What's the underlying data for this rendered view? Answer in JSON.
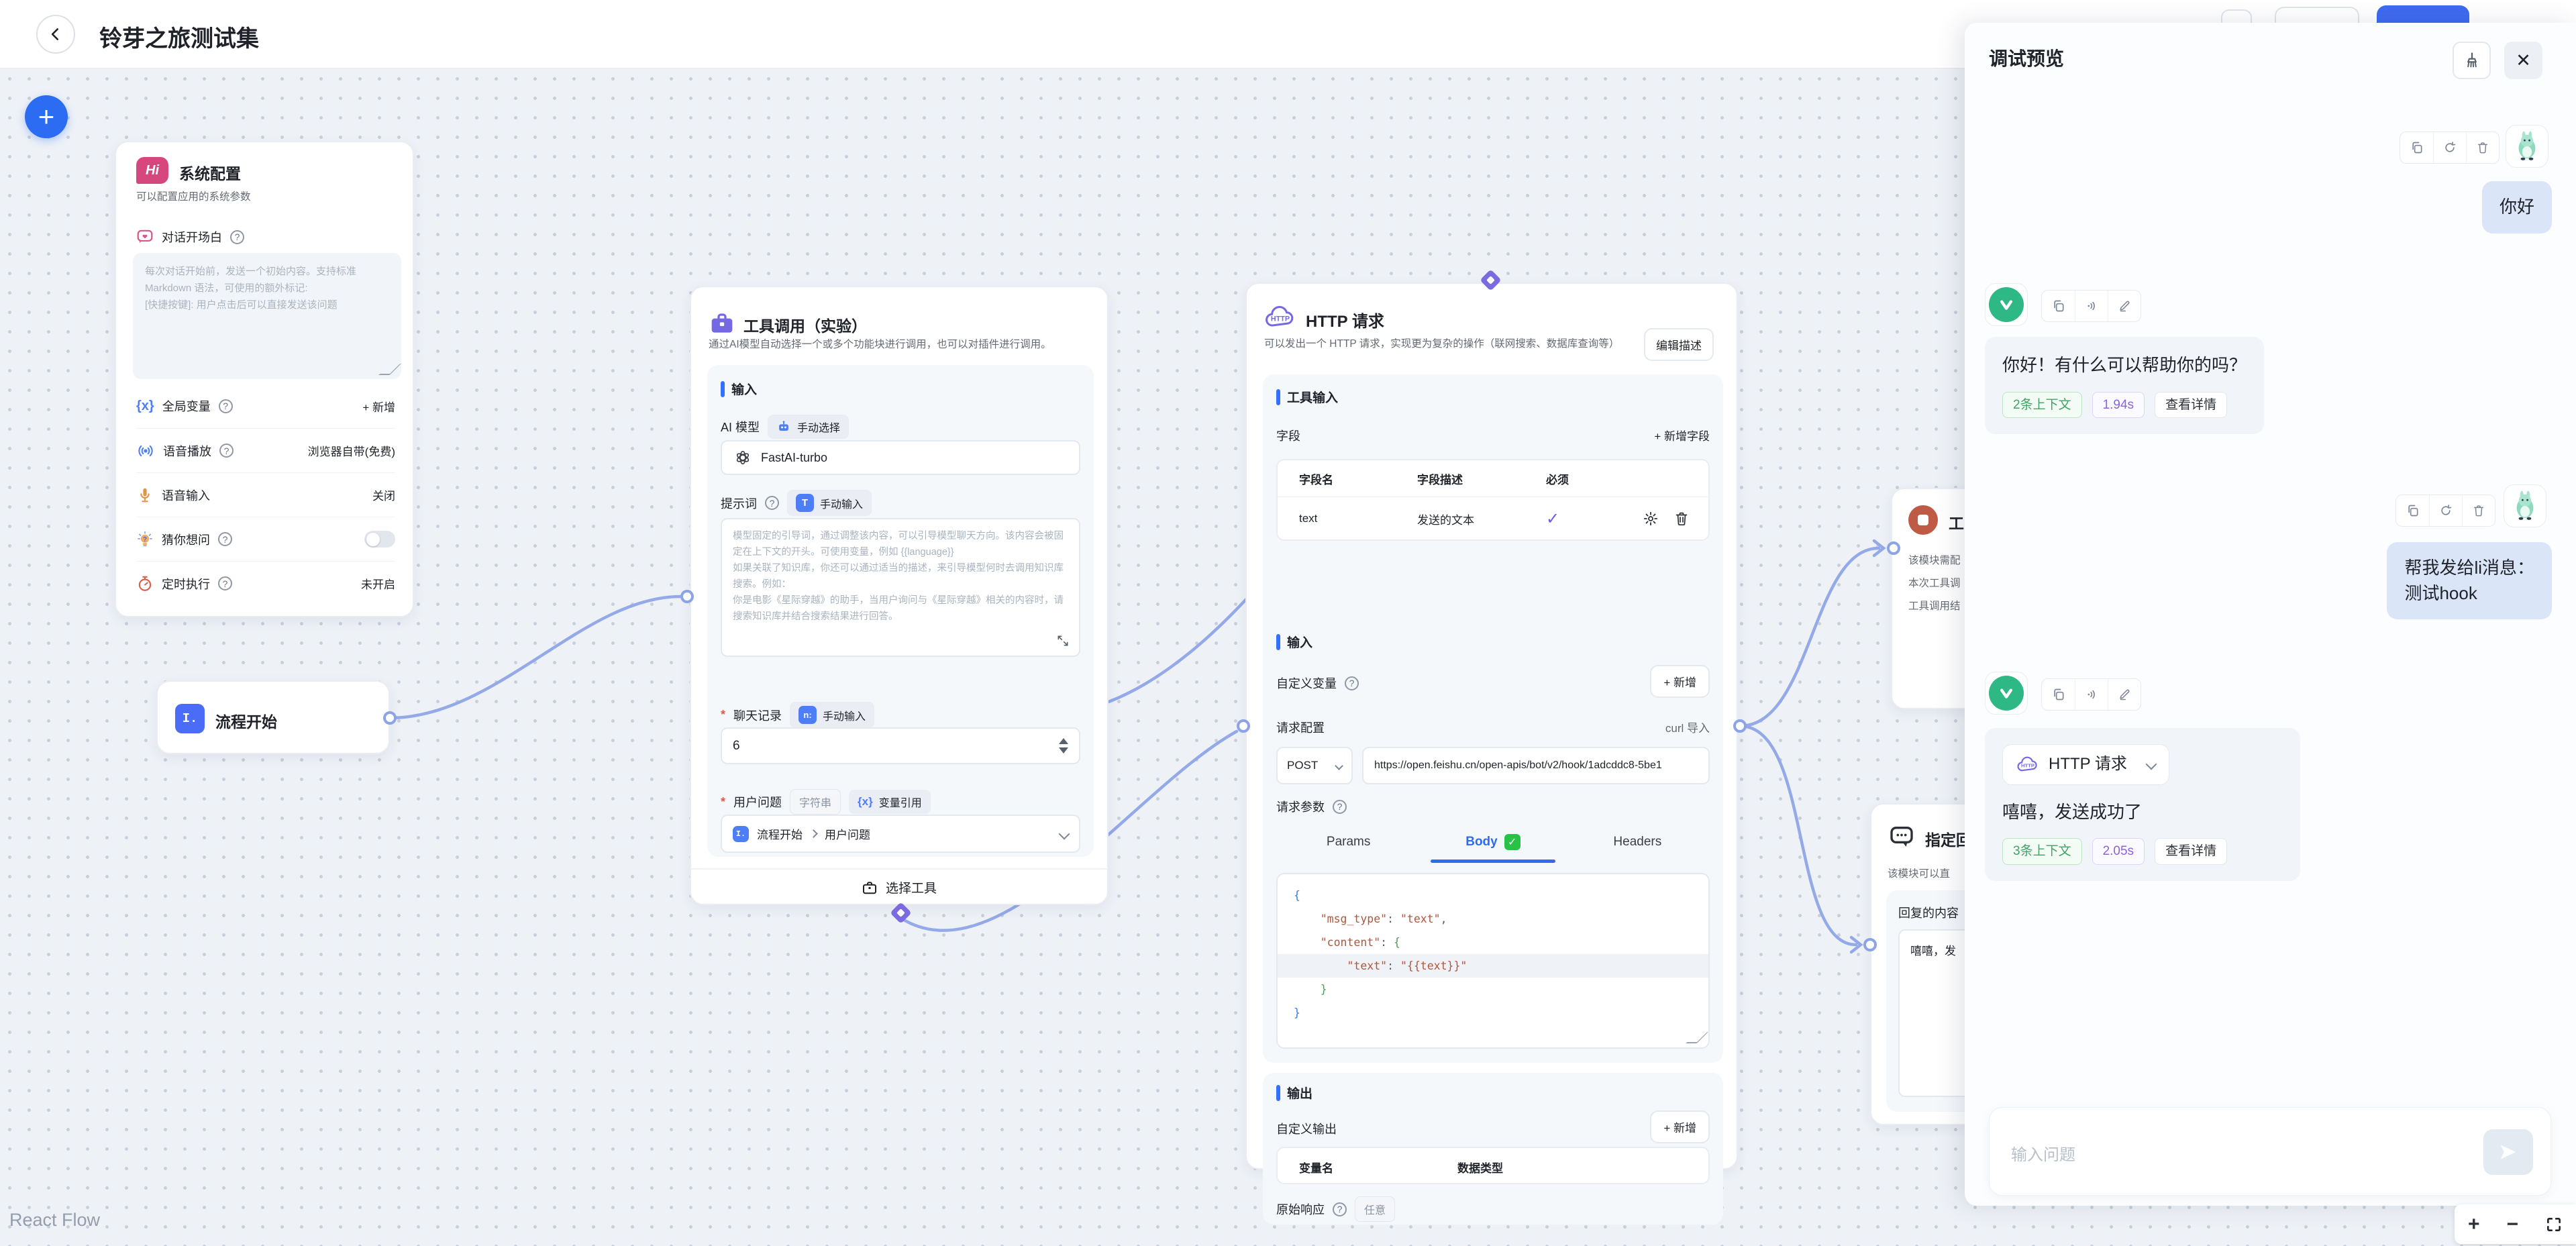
{
  "header": {
    "title": "铃芽之旅测试集"
  },
  "canvas": {
    "attribution": "React Flow"
  },
  "icons": {
    "close": "✕",
    "plus": "+",
    "minus": "−",
    "check": "✓",
    "gear": "⚙",
    "asterisk": "*"
  },
  "nodes": {
    "system_config": {
      "icon_text": "Hi",
      "title": "系统配置",
      "description": "可以配置应用的系统参数",
      "opening_label": "对话开场白",
      "opening_placeholder": "每次对话开始前，发送一个初始内容。支持标准 Markdown 语法，可使用的额外标记:\n[快捷按键]: 用户点击后可以直接发送该问题",
      "rows": {
        "global_vars": {
          "label": "全局变量",
          "action": "+ 新增"
        },
        "voice_play": {
          "label": "语音播放",
          "value": "浏览器自带(免费)"
        },
        "voice_input": {
          "label": "语音输入",
          "value": "关闭"
        },
        "guess_ask": {
          "label": "猜你想问"
        },
        "scheduled": {
          "label": "定时执行",
          "value": "未开启"
        }
      }
    },
    "flow_start": {
      "icon_text": "I.",
      "title": "流程开始"
    },
    "tool_call": {
      "title": "工具调用（实验）",
      "description": "通过AI模型自动选择一个或多个功能块进行调用，也可以对插件进行调用。",
      "input_section": "输入",
      "ai_model_label": "AI 模型",
      "manual_select_badge": "手动选择",
      "model_value": "FastAI-turbo",
      "prompt_label": "提示词",
      "prompt_icon": "T",
      "manual_input_badge": "手动输入",
      "prompt_placeholder": "模型固定的引导词，通过调整该内容，可以引导模型聊天方向。该内容会被固定在上下文的开头。可使用变量，例如 {{language}}\n如果关联了知识库，你还可以通过适当的描述，来引导模型何时去调用知识库搜索。例如：\n你是电影《星际穿越》的助手，当用户询问与《星际穿越》相关的内容时，请搜索知识库并结合搜索结果进行回答。",
      "history_label": "聊天记录",
      "history_icon": "n:",
      "history_value": "6",
      "question_label": "用户问题",
      "string_badge": "字符串",
      "varref_icon": "{x}",
      "varref_badge": "变量引用",
      "question_source": "流程开始",
      "question_field": "用户问题",
      "footer": "选择工具"
    },
    "http": {
      "icon_text": "HTTP",
      "title": "HTTP 请求",
      "description": "可以发出一个 HTTP 请求，实现更为复杂的操作（联网搜索、数据库查询等）",
      "edit_desc_button": "编辑描述",
      "tool_input_section": "工具输入",
      "field_label": "字段",
      "add_field_button": "+ 新增字段",
      "table_headers": [
        "字段名",
        "字段描述",
        "必须"
      ],
      "row_name": "text",
      "row_desc": "发送的文本",
      "row_required": "✓",
      "input_section": "输入",
      "custom_var_label": "自定义变量",
      "add_button": "+ 新增",
      "request_config_label": "请求配置",
      "curl_import": "curl 导入",
      "method": "POST",
      "url": "https://open.feishu.cn/open-apis/bot/v2/hook/1adcddc8-5be1",
      "request_params_label": "请求参数",
      "tab_params": "Params",
      "tab_body": "Body",
      "tab_headers": "Headers",
      "body_lines": [
        "{",
        "    \"msg_type\": \"text\",",
        "    \"content\": {",
        "        \"text\": \"{{text}}\"",
        "    }",
        "}"
      ],
      "active_line": 3,
      "output_section": "输出",
      "custom_output_label": "自定义输出",
      "output_headers": [
        "变量名",
        "数据类型"
      ],
      "raw_response_label": "原始响应",
      "any_badge": "任意"
    },
    "tool_end": {
      "title_fragment": "工",
      "desc_lines": [
        "该模块需配",
        "本次工具调",
        "工具调用结"
      ]
    },
    "reply": {
      "title_fragment": "指定回",
      "desc_fragment": "该模块可以直",
      "content_label": "回复的内容",
      "content_text": "嘻嘻，发"
    }
  },
  "debug": {
    "title": "调试预览",
    "messages": [
      {
        "role": "user",
        "text": "你好"
      },
      {
        "role": "assistant",
        "text": "你好！有什么可以帮助你的吗？",
        "context_tag": "2条上下文",
        "time_tag": "1.94s",
        "detail": "查看详情"
      },
      {
        "role": "user",
        "text": "帮我发给li消息：\n测试hook"
      },
      {
        "role": "assistant",
        "tool_label": "HTTP 请求",
        "text": "嘻嘻，发送成功了",
        "context_tag": "3条上下文",
        "time_tag": "2.05s",
        "detail": "查看详情"
      }
    ],
    "input_placeholder": "输入问题"
  }
}
